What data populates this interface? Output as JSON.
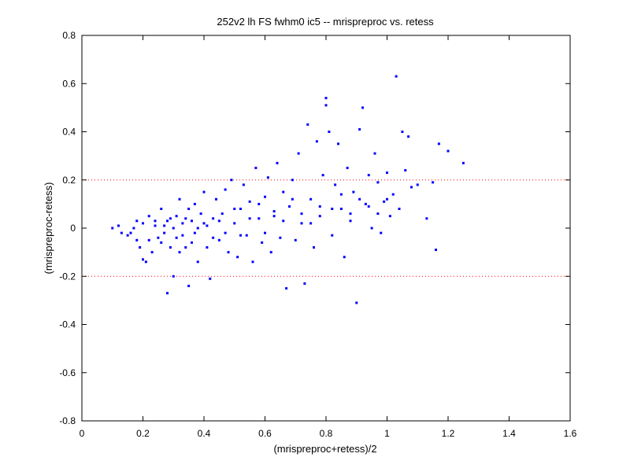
{
  "chart_data": {
    "type": "scatter",
    "title": "252v2 lh FS fwhm0 ic5 -- mrispreproc vs. retess",
    "xlabel": "(mrispreproc+retess)/2",
    "ylabel": "(mrispreproc-retess)",
    "xlim": [
      0,
      1.6
    ],
    "ylim": [
      -0.8,
      0.8
    ],
    "x_ticks": [
      0,
      0.2,
      0.4,
      0.6,
      0.8,
      1,
      1.2,
      1.4,
      1.6
    ],
    "y_ticks": [
      -0.8,
      -0.6,
      -0.4,
      -0.2,
      0,
      0.2,
      0.4,
      0.6,
      0.8
    ],
    "x_tick_labels": [
      "0",
      "0.2",
      "0.4",
      "0.6",
      "0.8",
      "1",
      "1.2",
      "1.4",
      "1.6"
    ],
    "y_tick_labels": [
      "-0.8",
      "-0.6",
      "-0.4",
      "-0.2",
      "0",
      "0.2",
      "0.4",
      "0.6",
      "0.8"
    ],
    "reference_lines": [
      {
        "y": 0.2,
        "style": "dotted",
        "color": "#ff0000"
      },
      {
        "y": -0.2,
        "style": "dotted",
        "color": "#ff0000"
      }
    ],
    "marker_color": "#0000ff",
    "grid": false,
    "series": [
      {
        "points": [
          [
            0.1,
            0.0
          ],
          [
            0.12,
            0.01
          ],
          [
            0.13,
            -0.02
          ],
          [
            0.15,
            -0.03
          ],
          [
            0.16,
            -0.02
          ],
          [
            0.17,
            0.0
          ],
          [
            0.18,
            -0.05
          ],
          [
            0.18,
            0.03
          ],
          [
            0.19,
            -0.08
          ],
          [
            0.2,
            0.02
          ],
          [
            0.2,
            -0.13
          ],
          [
            0.21,
            -0.14
          ],
          [
            0.22,
            -0.05
          ],
          [
            0.22,
            0.05
          ],
          [
            0.23,
            -0.1
          ],
          [
            0.24,
            0.01
          ],
          [
            0.25,
            -0.04
          ],
          [
            0.26,
            0.08
          ],
          [
            0.27,
            -0.02
          ],
          [
            0.28,
            -0.27
          ],
          [
            0.28,
            0.03
          ],
          [
            0.29,
            -0.08
          ],
          [
            0.3,
            -0.2
          ],
          [
            0.3,
            0.0
          ],
          [
            0.31,
            0.05
          ],
          [
            0.32,
            -0.1
          ],
          [
            0.32,
            0.12
          ],
          [
            0.33,
            -0.03
          ],
          [
            0.34,
            0.04
          ],
          [
            0.35,
            -0.24
          ],
          [
            0.35,
            0.08
          ],
          [
            0.36,
            -0.06
          ],
          [
            0.37,
            0.1
          ],
          [
            0.38,
            0.0
          ],
          [
            0.38,
            -0.14
          ],
          [
            0.4,
            0.02
          ],
          [
            0.4,
            0.15
          ],
          [
            0.41,
            -0.08
          ],
          [
            0.42,
            -0.21
          ],
          [
            0.43,
            0.04
          ],
          [
            0.44,
            0.12
          ],
          [
            0.45,
            -0.05
          ],
          [
            0.46,
            0.06
          ],
          [
            0.47,
            0.16
          ],
          [
            0.48,
            -0.1
          ],
          [
            0.49,
            0.2
          ],
          [
            0.5,
            0.02
          ],
          [
            0.51,
            -0.12
          ],
          [
            0.52,
            0.08
          ],
          [
            0.53,
            0.18
          ],
          [
            0.54,
            -0.03
          ],
          [
            0.55,
            0.11
          ],
          [
            0.56,
            -0.14
          ],
          [
            0.57,
            0.25
          ],
          [
            0.58,
            0.04
          ],
          [
            0.59,
            -0.06
          ],
          [
            0.6,
            0.13
          ],
          [
            0.61,
            0.21
          ],
          [
            0.62,
            -0.1
          ],
          [
            0.63,
            0.05
          ],
          [
            0.64,
            0.27
          ],
          [
            0.65,
            -0.04
          ],
          [
            0.66,
            0.15
          ],
          [
            0.67,
            -0.25
          ],
          [
            0.68,
            0.09
          ],
          [
            0.69,
            0.2
          ],
          [
            0.7,
            -0.05
          ],
          [
            0.71,
            0.31
          ],
          [
            0.72,
            0.02
          ],
          [
            0.73,
            -0.23
          ],
          [
            0.74,
            0.43
          ],
          [
            0.75,
            0.12
          ],
          [
            0.76,
            -0.08
          ],
          [
            0.77,
            0.36
          ],
          [
            0.78,
            0.05
          ],
          [
            0.79,
            0.22
          ],
          [
            0.8,
            0.54
          ],
          [
            0.8,
            0.51
          ],
          [
            0.81,
            0.4
          ],
          [
            0.82,
            -0.03
          ],
          [
            0.83,
            0.18
          ],
          [
            0.84,
            0.35
          ],
          [
            0.85,
            0.08
          ],
          [
            0.86,
            -0.12
          ],
          [
            0.87,
            0.25
          ],
          [
            0.88,
            0.03
          ],
          [
            0.89,
            0.15
          ],
          [
            0.9,
            -0.31
          ],
          [
            0.91,
            0.41
          ],
          [
            0.92,
            0.5
          ],
          [
            0.93,
            0.1
          ],
          [
            0.94,
            0.22
          ],
          [
            0.95,
            0.0
          ],
          [
            0.96,
            0.31
          ],
          [
            0.97,
            0.19
          ],
          [
            0.98,
            -0.02
          ],
          [
            0.99,
            0.11
          ],
          [
            1.0,
            0.23
          ],
          [
            1.01,
            0.05
          ],
          [
            1.02,
            0.14
          ],
          [
            1.03,
            0.63
          ],
          [
            1.04,
            0.08
          ],
          [
            1.05,
            0.4
          ],
          [
            1.06,
            0.24
          ],
          [
            1.07,
            0.38
          ],
          [
            1.08,
            0.17
          ],
          [
            1.1,
            0.18
          ],
          [
            1.13,
            0.04
          ],
          [
            1.15,
            0.19
          ],
          [
            1.16,
            -0.09
          ],
          [
            1.17,
            0.35
          ],
          [
            1.2,
            0.32
          ],
          [
            1.25,
            0.27
          ],
          [
            0.24,
            0.03
          ],
          [
            0.26,
            -0.06
          ],
          [
            0.27,
            0.01
          ],
          [
            0.29,
            0.04
          ],
          [
            0.31,
            -0.04
          ],
          [
            0.33,
            0.02
          ],
          [
            0.34,
            -0.08
          ],
          [
            0.36,
            0.03
          ],
          [
            0.37,
            -0.02
          ],
          [
            0.39,
            0.06
          ],
          [
            0.41,
            0.01
          ],
          [
            0.43,
            -0.04
          ],
          [
            0.45,
            0.03
          ],
          [
            0.47,
            -0.02
          ],
          [
            0.5,
            0.08
          ],
          [
            0.52,
            -0.03
          ],
          [
            0.55,
            0.04
          ],
          [
            0.58,
            0.1
          ],
          [
            0.6,
            -0.02
          ],
          [
            0.63,
            0.07
          ],
          [
            0.66,
            0.03
          ],
          [
            0.69,
            0.12
          ],
          [
            0.72,
            0.06
          ],
          [
            0.75,
            0.02
          ],
          [
            0.78,
            0.09
          ],
          [
            0.82,
            0.08
          ],
          [
            0.85,
            0.14
          ],
          [
            0.88,
            0.06
          ],
          [
            0.91,
            0.12
          ],
          [
            0.94,
            0.09
          ],
          [
            0.97,
            0.06
          ],
          [
            1.0,
            0.12
          ]
        ]
      }
    ]
  }
}
